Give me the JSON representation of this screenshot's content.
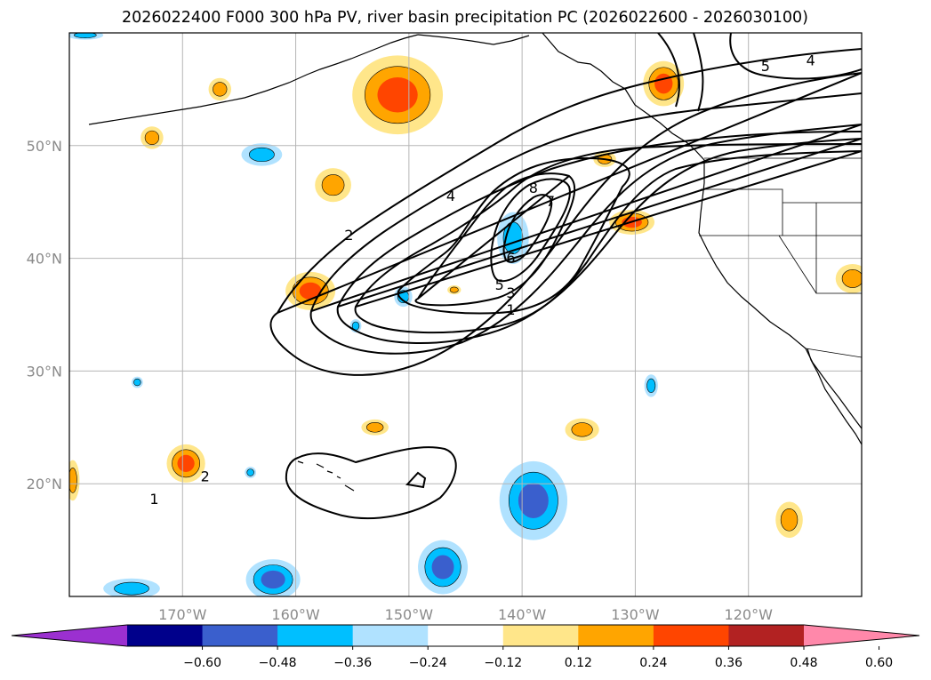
{
  "chart_data": {
    "type": "map-contour",
    "title": "2026022400 F000 300 hPa PV, river basin precipitation PC (2026022600 - 2026030100)",
    "map_extent": {
      "lon_min": -180,
      "lon_max": -110,
      "lat_min": 10,
      "lat_max": 60
    },
    "lon_ticks": [
      -170,
      -160,
      -150,
      -140,
      -130,
      -120
    ],
    "lon_tick_labels": [
      "170°W",
      "160°W",
      "150°W",
      "140°W",
      "130°W",
      "120°W"
    ],
    "lat_ticks": [
      20,
      30,
      40,
      50
    ],
    "lat_tick_labels": [
      "20°N",
      "30°N",
      "40°N",
      "50°N"
    ],
    "grid": true,
    "colorbar": {
      "orientation": "horizontal",
      "boundaries": [
        -0.72,
        -0.6,
        -0.48,
        -0.36,
        -0.24,
        -0.12,
        0.12,
        0.24,
        0.36,
        0.48,
        0.6,
        0.72
      ],
      "tick_values": [
        -0.6,
        -0.48,
        -0.36,
        -0.24,
        -0.12,
        0.12,
        0.24,
        0.36,
        0.48,
        0.6
      ],
      "tick_labels": [
        "−0.60",
        "−0.48",
        "−0.36",
        "−0.24",
        "−0.12",
        "0.12",
        "0.24",
        "0.36",
        "0.48",
        "0.60"
      ],
      "colors": [
        "#9b30d0",
        "#00008b",
        "#3a5fcd",
        "#00bfff",
        "#b0e2ff",
        "#ffffff",
        "#ffe68a",
        "#ffa500",
        "#ff4500",
        "#b22222",
        "#ff88aa"
      ],
      "extend": "both"
    },
    "pv_contour_labels": [
      {
        "value": "1",
        "lon": -172.5,
        "lat": 18.6
      },
      {
        "value": "2",
        "lon": -168.0,
        "lat": 20.6
      },
      {
        "value": "2",
        "lon": -155.3,
        "lat": 42.0
      },
      {
        "value": "4",
        "lon": -146.3,
        "lat": 45.5
      },
      {
        "value": "8",
        "lon": -139.0,
        "lat": 46.2
      },
      {
        "value": "7",
        "lon": -137.5,
        "lat": 45.0
      },
      {
        "value": "6",
        "lon": -141.0,
        "lat": 40.0
      },
      {
        "value": "5",
        "lon": -142.0,
        "lat": 37.6
      },
      {
        "value": "3",
        "lon": -141.0,
        "lat": 36.9
      },
      {
        "value": "1",
        "lon": -141.0,
        "lat": 35.4
      },
      {
        "value": "5",
        "lon": -118.5,
        "lat": 57.0
      },
      {
        "value": "4",
        "lon": -114.5,
        "lat": 57.5
      }
    ],
    "precip_pc_patches": [
      {
        "lon": -151.0,
        "lat": 54.5,
        "rx": 4.0,
        "ry": 3.5,
        "value": 0.4
      },
      {
        "lon": -127.5,
        "lat": 55.5,
        "rx": 1.8,
        "ry": 2.0,
        "value": 0.42
      },
      {
        "lon": -158.7,
        "lat": 37.1,
        "rx": 2.2,
        "ry": 1.7,
        "value": 0.4
      },
      {
        "lon": -163.0,
        "lat": 49.2,
        "rx": 1.8,
        "ry": 1.0,
        "value": -0.3
      },
      {
        "lon": -156.7,
        "lat": 46.5,
        "rx": 1.6,
        "ry": 1.5,
        "value": 0.26
      },
      {
        "lon": -166.7,
        "lat": 55.0,
        "rx": 1.0,
        "ry": 1.0,
        "value": 0.26
      },
      {
        "lon": -172.7,
        "lat": 50.7,
        "rx": 1.0,
        "ry": 1.0,
        "value": 0.26
      },
      {
        "lon": -130.3,
        "lat": 43.2,
        "rx": 2.0,
        "ry": 1.1,
        "value": 0.38
      },
      {
        "lon": -132.7,
        "lat": 48.8,
        "rx": 1.0,
        "ry": 0.7,
        "value": 0.26
      },
      {
        "lon": -140.8,
        "lat": 41.8,
        "rx": 1.4,
        "ry": 2.3,
        "value": -0.3
      },
      {
        "lon": -150.5,
        "lat": 36.6,
        "rx": 0.8,
        "ry": 0.9,
        "value": -0.25
      },
      {
        "lon": -146.0,
        "lat": 37.2,
        "rx": 0.6,
        "ry": 0.4,
        "value": 0.26
      },
      {
        "lon": -154.7,
        "lat": 34.0,
        "rx": 0.5,
        "ry": 0.6,
        "value": -0.25
      },
      {
        "lon": -174.0,
        "lat": 29.0,
        "rx": 0.5,
        "ry": 0.5,
        "value": -0.25
      },
      {
        "lon": -153.0,
        "lat": 25.0,
        "rx": 1.2,
        "ry": 0.7,
        "value": 0.3
      },
      {
        "lon": -134.7,
        "lat": 24.8,
        "rx": 1.5,
        "ry": 1.0,
        "value": 0.3
      },
      {
        "lon": -128.6,
        "lat": 28.7,
        "rx": 0.6,
        "ry": 1.0,
        "value": -0.3
      },
      {
        "lon": -169.7,
        "lat": 21.8,
        "rx": 1.7,
        "ry": 1.7,
        "value": 0.4
      },
      {
        "lon": -164.0,
        "lat": 21.0,
        "rx": 0.5,
        "ry": 0.5,
        "value": -0.25
      },
      {
        "lon": -139.0,
        "lat": 18.5,
        "rx": 3.0,
        "ry": 3.5,
        "value": -0.4
      },
      {
        "lon": -147.0,
        "lat": 12.6,
        "rx": 2.2,
        "ry": 2.4,
        "value": -0.4
      },
      {
        "lon": -162.0,
        "lat": 11.5,
        "rx": 2.4,
        "ry": 1.8,
        "value": -0.4
      },
      {
        "lon": -174.5,
        "lat": 10.7,
        "rx": 2.5,
        "ry": 0.9,
        "value": -0.3
      },
      {
        "lon": -116.4,
        "lat": 16.8,
        "rx": 1.2,
        "ry": 1.6,
        "value": 0.3
      },
      {
        "lon": -110.8,
        "lat": 38.2,
        "rx": 1.5,
        "ry": 1.3,
        "value": 0.3
      },
      {
        "lon": -179.7,
        "lat": 20.3,
        "rx": 0.6,
        "ry": 1.8,
        "value": 0.3
      },
      {
        "lon": -178.6,
        "lat": 59.8,
        "rx": 1.6,
        "ry": 0.4,
        "value": -0.25
      }
    ]
  }
}
